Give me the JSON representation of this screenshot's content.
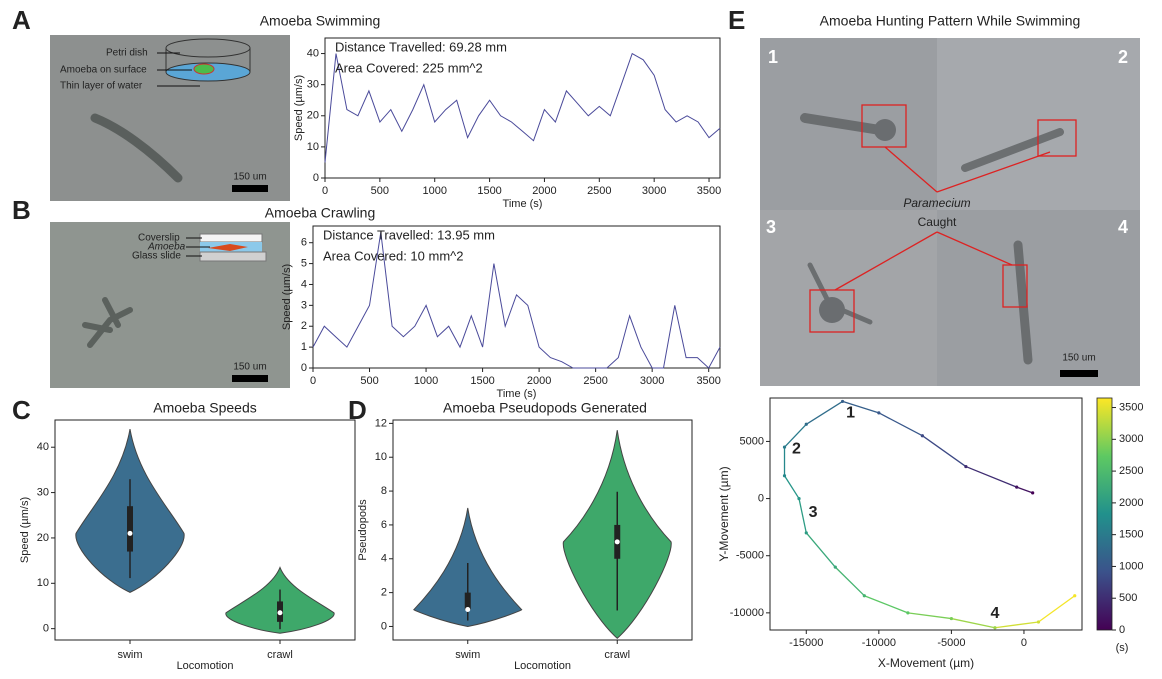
{
  "panel_labels": [
    "A",
    "B",
    "C",
    "D",
    "E"
  ],
  "images": [
    {
      "labels": [
        "Petri dish",
        "Amoeba on surface",
        "Thin layer of water"
      ],
      "scale_bar": "150 um"
    },
    {
      "labels": [
        "Coverslip",
        "Amoeba",
        "Glass slide"
      ],
      "scale_bar": "150 um"
    },
    {
      "title": "Amoeba Hunting Pattern While Swimming",
      "frame_labels": [
        "1",
        "2",
        "3",
        "4"
      ],
      "callout": [
        "Paramecium",
        "Caught"
      ],
      "scale_bar": "150 um"
    }
  ],
  "chart_data": [
    {
      "type": "line",
      "title": "Amoeba Swimming",
      "x_label": "Time (s)",
      "y_label": "Speed (µm/s)",
      "annotations": [
        "Distance Travelled: 69.28 mm",
        "Area Covered: 225 mm^2"
      ],
      "x": [
        0,
        100,
        200,
        300,
        400,
        500,
        600,
        700,
        800,
        900,
        1000,
        1100,
        1200,
        1300,
        1400,
        1500,
        1600,
        1700,
        1800,
        1900,
        2000,
        2100,
        2200,
        2300,
        2400,
        2500,
        2600,
        2700,
        2800,
        2900,
        3000,
        3100,
        3200,
        3300,
        3400,
        3500,
        3600
      ],
      "values": [
        5,
        40,
        22,
        20,
        28,
        18,
        22,
        15,
        22,
        30,
        18,
        22,
        25,
        13,
        20,
        25,
        20,
        18,
        15,
        12,
        22,
        18,
        28,
        24,
        20,
        23,
        20,
        30,
        40,
        38,
        33,
        22,
        18,
        20,
        18,
        13,
        16
      ],
      "color": "#4a4a9a",
      "xlim": [
        0,
        3600
      ],
      "xticks": [
        0,
        500,
        1000,
        1500,
        2000,
        2500,
        3000,
        3500
      ],
      "ylim": [
        0,
        45
      ],
      "yticks": [
        0,
        10,
        20,
        30,
        40
      ]
    },
    {
      "type": "line",
      "title": "Amoeba Crawling",
      "x_label": "Time (s)",
      "y_label": "Speed (µm/s)",
      "annotations": [
        "Distance Travelled: 13.95 mm",
        "Area Covered: 10 mm^2"
      ],
      "x": [
        0,
        100,
        200,
        300,
        400,
        500,
        600,
        700,
        800,
        900,
        1000,
        1100,
        1200,
        1300,
        1400,
        1500,
        1600,
        1700,
        1800,
        1900,
        2000,
        2100,
        2200,
        2300,
        2400,
        2500,
        2600,
        2700,
        2800,
        2900,
        3000,
        3100,
        3200,
        3300,
        3400,
        3500,
        3600
      ],
      "values": [
        1,
        2,
        1.5,
        1,
        2,
        3,
        6.5,
        2,
        1.5,
        2,
        3,
        1.5,
        2,
        1,
        2.5,
        1,
        5,
        2,
        3.5,
        3,
        1,
        0.5,
        0.3,
        0,
        0,
        0,
        0,
        0.5,
        2.5,
        1,
        0,
        0,
        3,
        0.5,
        0.5,
        0,
        1
      ],
      "color": "#4a4a9a",
      "xlim": [
        0,
        3600
      ],
      "xticks": [
        0,
        500,
        1000,
        1500,
        2000,
        2500,
        3000,
        3500
      ],
      "ylim": [
        0,
        6.8
      ],
      "yticks": [
        0,
        1,
        2,
        3,
        4,
        5,
        6
      ]
    },
    {
      "type": "violin",
      "title": "Amoeba Speeds",
      "x_label": "Locomotion",
      "y_label": "Speed (µm/s)",
      "categories": [
        "swim",
        "crawl"
      ],
      "min": [
        8,
        -1
      ],
      "q1": [
        17,
        1.5
      ],
      "median": [
        21,
        3.5
      ],
      "q3": [
        27,
        6
      ],
      "max": [
        44,
        13.5
      ],
      "colors": [
        "#3b6e8f",
        "#3ea86a"
      ],
      "ylim": [
        -2.5,
        46
      ],
      "yticks": [
        0,
        10,
        20,
        30,
        40
      ]
    },
    {
      "type": "violin",
      "title": "Amoeba Pseudopods Generated",
      "x_label": "Locomotion",
      "y_label": "Pseudopods",
      "categories": [
        "swim",
        "crawl"
      ],
      "min": [
        0,
        -0.7
      ],
      "q1": [
        1,
        4
      ],
      "median": [
        1,
        5
      ],
      "q3": [
        2,
        6
      ],
      "max": [
        7,
        11.6
      ],
      "colors": [
        "#3b6e8f",
        "#3ea86a"
      ],
      "ylim": [
        -0.8,
        12.2
      ],
      "yticks": [
        0,
        2,
        4,
        6,
        8,
        10,
        12
      ]
    },
    {
      "type": "trajectory",
      "x_label": "X-Movement (µm)",
      "y_label": "Y-Movement (µm)",
      "annotations": [
        "1",
        "2",
        "3",
        "4"
      ],
      "x": [
        600,
        -500,
        -4000,
        -7000,
        -10000,
        -12500,
        -15000,
        -16500,
        -16500,
        -15500,
        -15000,
        -13000,
        -11000,
        -8000,
        -5000,
        -2000,
        1000,
        3500
      ],
      "y": [
        500,
        1000,
        2800,
        5500,
        7500,
        8500,
        6500,
        4500,
        2000,
        0,
        -3000,
        -6000,
        -8500,
        -10000,
        -10500,
        -11300,
        -10800,
        -8500
      ],
      "t": [
        0,
        200,
        500,
        800,
        1000,
        1100,
        1300,
        1500,
        1700,
        1900,
        2000,
        2200,
        2400,
        2700,
        2900,
        3100,
        3400,
        3600
      ],
      "colormap": "viridis",
      "xlim": [
        -17500,
        4000
      ],
      "xticks": [
        -15000,
        -10000,
        -5000,
        0
      ],
      "ylim": [
        -11500,
        8800
      ],
      "yticks": [
        -10000,
        -5000,
        0,
        5000
      ],
      "clim": [
        0,
        3650
      ],
      "cticks": [
        0,
        500,
        1000,
        1500,
        2000,
        2500,
        3000,
        3500
      ],
      "colorbar_label": "(s)"
    }
  ]
}
